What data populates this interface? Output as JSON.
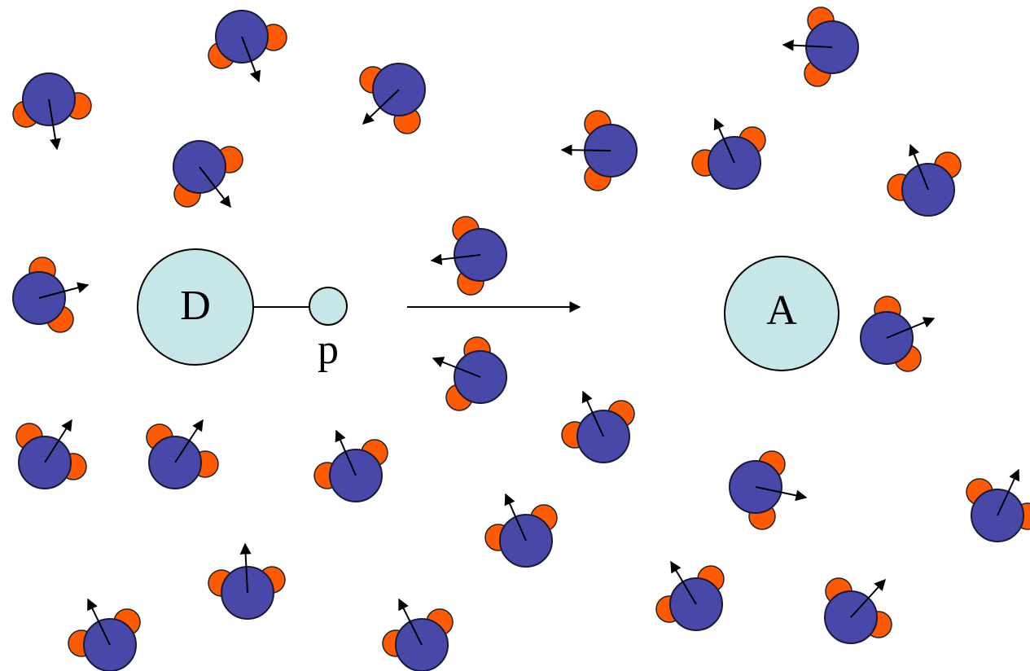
{
  "labels": {
    "donor": "D",
    "proton": "p",
    "acceptor": "A"
  }
}
